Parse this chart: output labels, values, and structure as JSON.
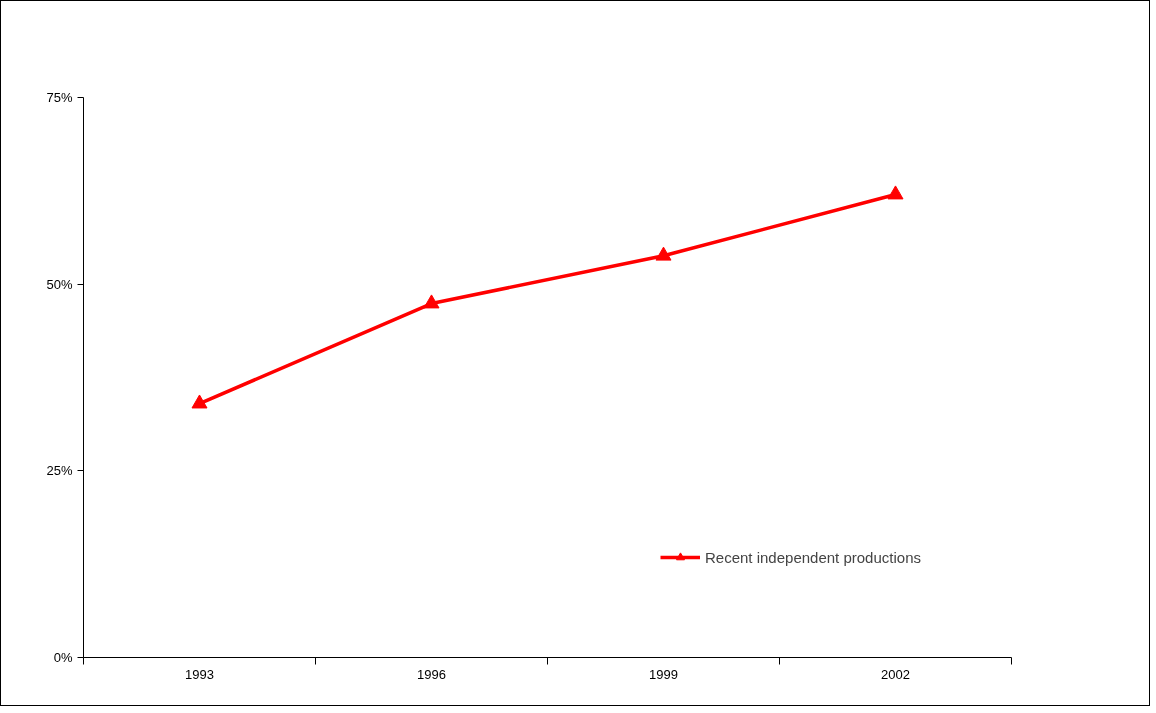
{
  "chart_data": {
    "type": "line",
    "categories": [
      "1993",
      "1996",
      "1999",
      "2002"
    ],
    "series": [
      {
        "name": "Recent independent productions",
        "color": "#ff0000",
        "values": [
          34,
          47.4,
          53.8,
          62
        ]
      }
    ],
    "ylim": [
      0,
      75
    ],
    "yticks": [
      {
        "value": 0,
        "label": "0%"
      },
      {
        "value": 25,
        "label": "25%"
      },
      {
        "value": 50,
        "label": "50%"
      },
      {
        "value": 75,
        "label": "75%"
      }
    ],
    "grid": false,
    "legend": "bottom right",
    "marker": "triangle",
    "line_style": "solid"
  }
}
